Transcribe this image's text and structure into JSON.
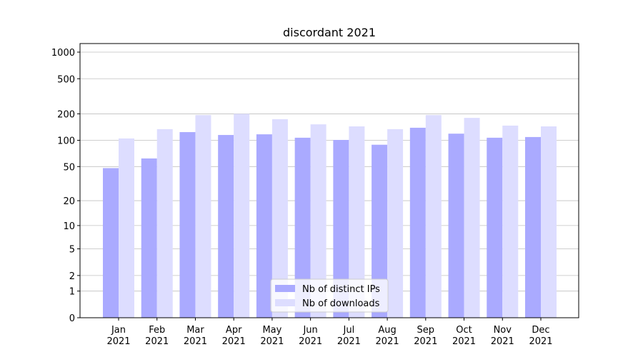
{
  "chart_data": {
    "type": "bar",
    "title": "discordant 2021",
    "categories": [
      "Jan 2021",
      "Feb 2021",
      "Mar 2021",
      "Apr 2021",
      "May 2021",
      "Jun 2021",
      "Jul 2021",
      "Aug 2021",
      "Sep 2021",
      "Oct 2021",
      "Nov 2021",
      "Dec 2021"
    ],
    "series": [
      {
        "name": "Nb of distinct IPs",
        "color": "#aaaaff",
        "values": [
          48,
          62,
          124,
          115,
          117,
          107,
          101,
          89,
          139,
          119,
          107,
          109
        ]
      },
      {
        "name": "Nb of downloads",
        "color": "#ddddff",
        "values": [
          105,
          134,
          194,
          200,
          174,
          152,
          144,
          134,
          194,
          180,
          147,
          144
        ]
      }
    ],
    "yscale": "log1p",
    "ylim": [
      0,
      1250
    ],
    "yticks": [
      0,
      1,
      2,
      5,
      10,
      20,
      50,
      100,
      200,
      500,
      1000
    ],
    "grid": true,
    "legend": "lower center"
  }
}
